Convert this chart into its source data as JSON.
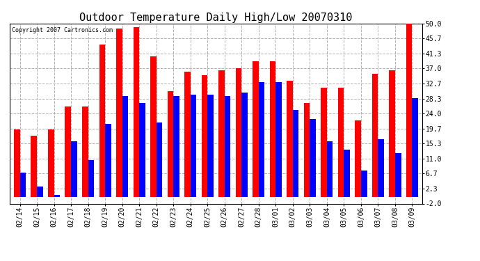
{
  "title": "Outdoor Temperature Daily High/Low 20070310",
  "copyright": "Copyright 2007 Cartronics.com",
  "dates": [
    "02/14",
    "02/15",
    "02/16",
    "02/17",
    "02/18",
    "02/19",
    "02/20",
    "02/21",
    "02/22",
    "02/23",
    "02/24",
    "02/25",
    "02/26",
    "02/27",
    "02/28",
    "03/01",
    "03/02",
    "03/03",
    "03/04",
    "03/05",
    "03/06",
    "03/07",
    "03/08",
    "03/09"
  ],
  "highs": [
    19.5,
    17.5,
    19.5,
    26.0,
    26.0,
    44.0,
    48.5,
    49.0,
    40.5,
    30.5,
    36.0,
    35.0,
    36.5,
    37.0,
    39.0,
    39.0,
    33.5,
    27.0,
    31.5,
    31.5,
    22.0,
    35.5,
    36.5,
    50.0
  ],
  "lows": [
    7.0,
    3.0,
    0.5,
    16.0,
    10.5,
    21.0,
    29.0,
    27.0,
    21.5,
    29.0,
    29.5,
    29.5,
    29.0,
    30.0,
    33.0,
    33.0,
    25.0,
    22.5,
    16.0,
    13.5,
    7.5,
    16.5,
    12.5,
    28.5
  ],
  "high_color": "#ff0000",
  "low_color": "#0000ff",
  "background_color": "#ffffff",
  "grid_color": "#b0b0b0",
  "yticks": [
    -2.0,
    2.3,
    6.7,
    11.0,
    15.3,
    19.7,
    24.0,
    28.3,
    32.7,
    37.0,
    41.3,
    45.7,
    50.0
  ],
  "ylim": [
    -2.0,
    50.0
  ],
  "title_fontsize": 11,
  "tick_fontsize": 7,
  "bar_width": 0.35,
  "fig_width": 6.9,
  "fig_height": 3.75
}
